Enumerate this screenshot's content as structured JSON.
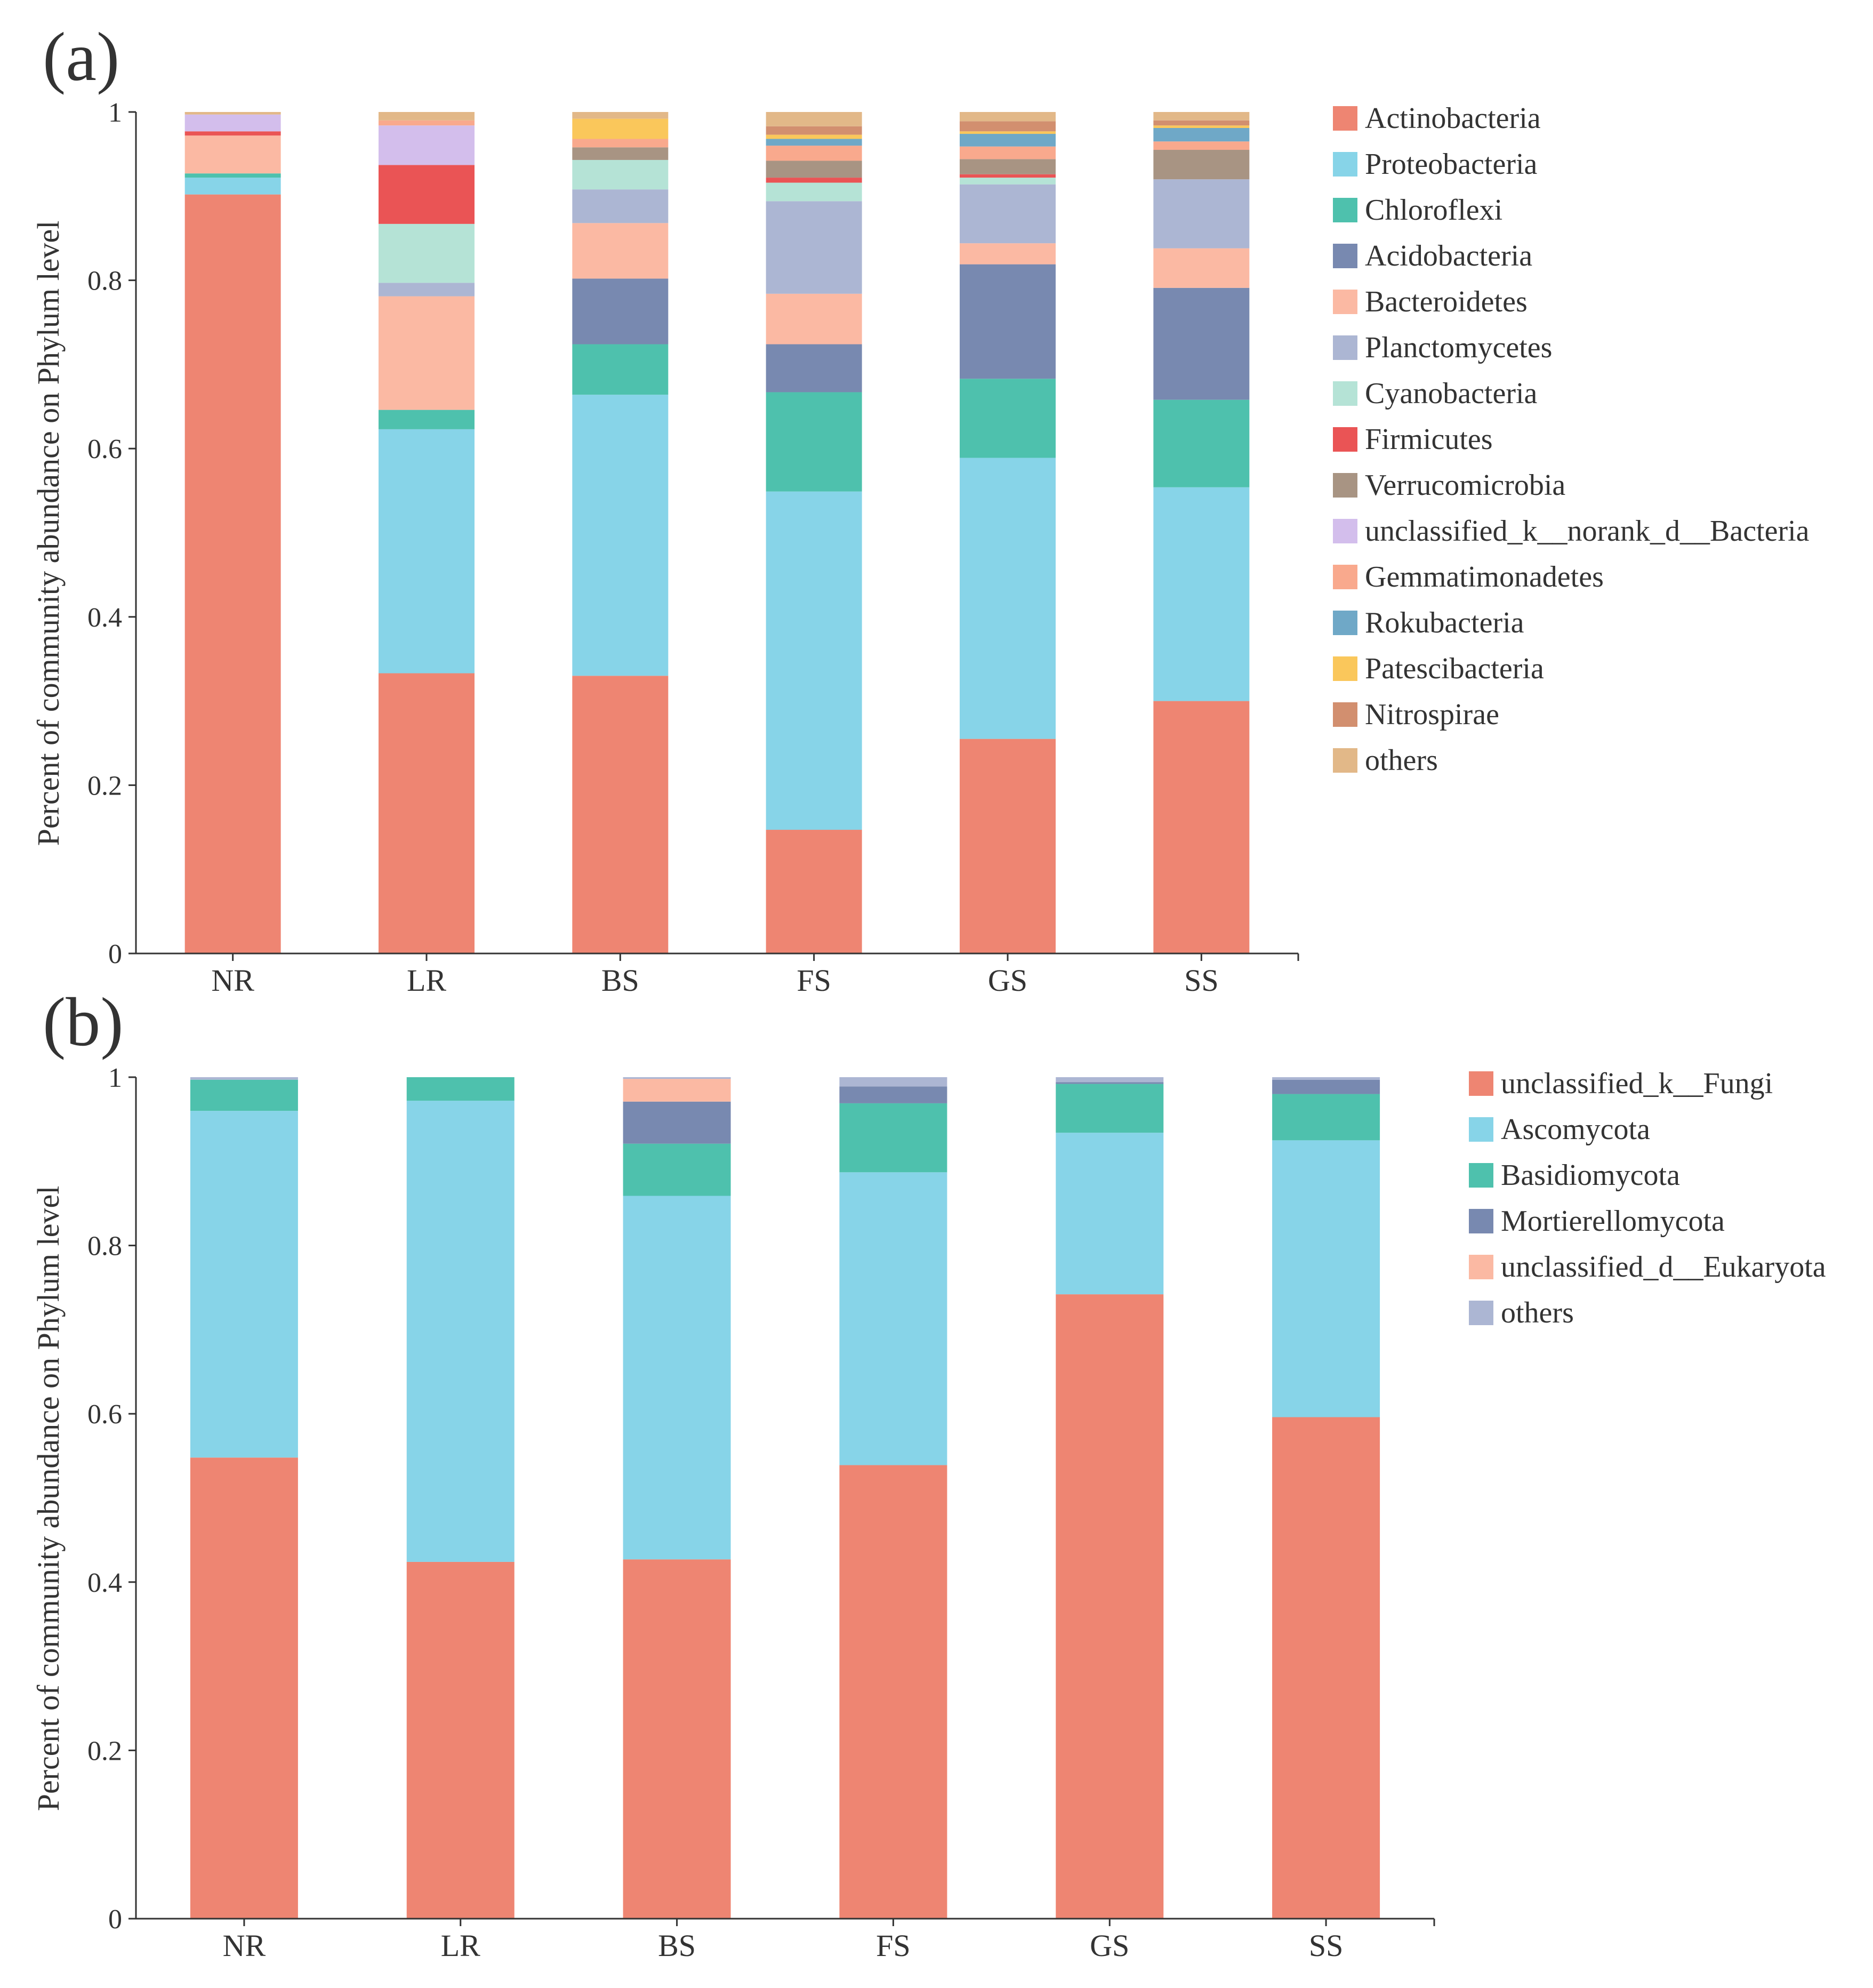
{
  "chart_data": [
    {
      "panel_label": "(a)",
      "type": "stacked-bar",
      "ylabel": "Percent of community abundance on Phylum level",
      "xlabel": "",
      "ylim": [
        0,
        1
      ],
      "yticks": [
        "0",
        "0.2",
        "0.4",
        "0.6",
        "0.8",
        "1"
      ],
      "categories": [
        "NR",
        "LR",
        "BS",
        "FS",
        "GS",
        "SS"
      ],
      "legend_position": "right",
      "series": [
        {
          "name": "Actinobacteria",
          "color": "#EE8572",
          "values": [
            0.902,
            0.333,
            0.33,
            0.147,
            0.255,
            0.3
          ]
        },
        {
          "name": "Proteobacteria",
          "color": "#87D4E8",
          "values": [
            0.02,
            0.29,
            0.334,
            0.402,
            0.334,
            0.254
          ]
        },
        {
          "name": "Chloroflexi",
          "color": "#4EC1AD",
          "values": [
            0.005,
            0.023,
            0.06,
            0.118,
            0.094,
            0.104
          ]
        },
        {
          "name": "Acidobacteria",
          "color": "#7889B0",
          "values": [
            0.0,
            0.0,
            0.078,
            0.057,
            0.136,
            0.133
          ]
        },
        {
          "name": "Bacteroidetes",
          "color": "#FBB9A3",
          "values": [
            0.045,
            0.135,
            0.066,
            0.06,
            0.025,
            0.047
          ]
        },
        {
          "name": "Planctomycetes",
          "color": "#ACB6D3",
          "values": [
            0.0,
            0.016,
            0.04,
            0.11,
            0.07,
            0.082
          ]
        },
        {
          "name": "Cyanobacteria",
          "color": "#B5E3D6",
          "values": [
            0.0,
            0.07,
            0.035,
            0.022,
            0.008,
            0.0
          ]
        },
        {
          "name": "Firmicutes",
          "color": "#EA5455",
          "values": [
            0.005,
            0.07,
            0.0,
            0.006,
            0.004,
            0.0
          ]
        },
        {
          "name": "Verrucomicrobia",
          "color": "#A89483",
          "values": [
            0.0,
            0.0,
            0.015,
            0.02,
            0.018,
            0.035
          ]
        },
        {
          "name": "unclassified_k__norank_d__Bacteria",
          "color": "#D3BEEC",
          "values": [
            0.02,
            0.047,
            0.0,
            0.0,
            0.0,
            0.0
          ]
        },
        {
          "name": "Gemmatimonadetes",
          "color": "#F9A98D",
          "values": [
            0.0,
            0.006,
            0.01,
            0.018,
            0.015,
            0.01
          ]
        },
        {
          "name": "Rokubacteria",
          "color": "#6FA8C7",
          "values": [
            0.0,
            0.0,
            0.0,
            0.008,
            0.015,
            0.016
          ]
        },
        {
          "name": "Patescibacteria",
          "color": "#FAC75B",
          "values": [
            0.0,
            0.0,
            0.024,
            0.005,
            0.003,
            0.003
          ]
        },
        {
          "name": "Nitrospirae",
          "color": "#D28F6F",
          "values": [
            0.0,
            0.0,
            0.0,
            0.01,
            0.012,
            0.006
          ]
        },
        {
          "name": "others",
          "color": "#E2B888",
          "values": [
            0.003,
            0.01,
            0.008,
            0.017,
            0.011,
            0.01
          ]
        }
      ]
    },
    {
      "panel_label": "(b)",
      "type": "stacked-bar",
      "ylabel": "Percent of community abundance on Phylum level",
      "xlabel": "",
      "ylim": [
        0,
        1
      ],
      "yticks": [
        "0",
        "0.2",
        "0.4",
        "0.6",
        "0.8",
        "1"
      ],
      "categories": [
        "NR",
        "LR",
        "BS",
        "FS",
        "GS",
        "SS"
      ],
      "legend_position": "right",
      "series": [
        {
          "name": "unclassified_k__Fungi",
          "color": "#EE8572",
          "values": [
            0.548,
            0.424,
            0.427,
            0.539,
            0.742,
            0.596
          ]
        },
        {
          "name": "Ascomycota",
          "color": "#87D4E8",
          "values": [
            0.412,
            0.548,
            0.432,
            0.348,
            0.192,
            0.329
          ]
        },
        {
          "name": "Basidiomycota",
          "color": "#4EC1AD",
          "values": [
            0.037,
            0.028,
            0.062,
            0.082,
            0.058,
            0.055
          ]
        },
        {
          "name": "Mortierellomycota",
          "color": "#7889B0",
          "values": [
            0.0,
            0.0,
            0.05,
            0.02,
            0.002,
            0.017
          ]
        },
        {
          "name": "unclassified_d__Eukaryota",
          "color": "#FBB9A3",
          "values": [
            0.0,
            0.0,
            0.027,
            0.0,
            0.0,
            0.0
          ]
        },
        {
          "name": "others",
          "color": "#ACB6D3",
          "values": [
            0.003,
            0.0,
            0.002,
            0.011,
            0.006,
            0.003
          ]
        }
      ]
    }
  ]
}
